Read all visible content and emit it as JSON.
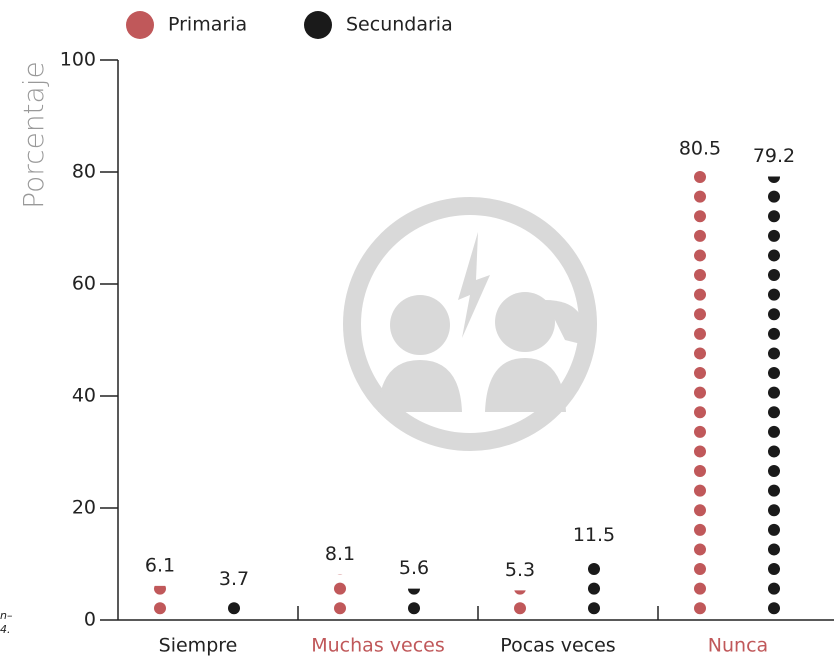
{
  "chart_data": {
    "type": "dot-column",
    "y_axis_label": "Porcentaje",
    "categories": [
      "Siempre",
      "Muchas veces",
      "Pocas veces",
      "Nunca"
    ],
    "category_label_colors": [
      "#222222",
      "#c0585a",
      "#222222",
      "#c0585a"
    ],
    "series": [
      {
        "name": "Primaria",
        "color": "#c0585a",
        "values": [
          6.1,
          8.1,
          5.3,
          80.5
        ]
      },
      {
        "name": "Secundaria",
        "color": "#1a1a1a",
        "values": [
          3.7,
          5.6,
          11.5,
          79.2
        ]
      }
    ],
    "ylim": [
      0,
      100
    ],
    "yticks": [
      0,
      20,
      40,
      60,
      80,
      100
    ],
    "footnote_fragments": [
      "n–",
      "4."
    ]
  }
}
